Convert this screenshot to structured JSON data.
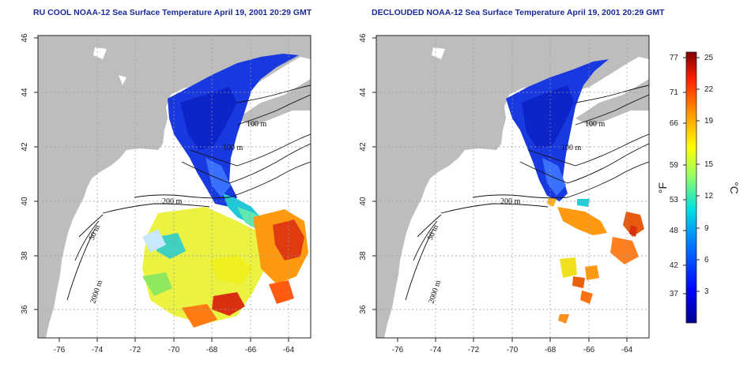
{
  "panels": [
    {
      "title": "RU COOL NOAA-12 Sea Surface Temperature April 19, 2001 20:29 GMT",
      "x_ticks": [
        "-76",
        "-74",
        "-72",
        "-70",
        "-68",
        "-66",
        "-64"
      ],
      "y_ticks": [
        "46",
        "44",
        "42",
        "40",
        "38",
        "36"
      ],
      "contour_labels": [
        "100 m",
        "100 m",
        "200 m",
        "50 m",
        "2000 m"
      ]
    },
    {
      "title": "DECLOUDED NOAA-12 Sea Surface Temperature April 19, 2001 20:29 GMT",
      "x_ticks": [
        "-76",
        "-74",
        "-72",
        "-70",
        "-68",
        "-66",
        "-64"
      ],
      "y_ticks": [
        "46",
        "44",
        "42",
        "40",
        "38",
        "36"
      ],
      "contour_labels": [
        "100 m",
        "100 m",
        "200 m",
        "50 m",
        "2000 m"
      ]
    }
  ],
  "colorbar": {
    "fahrenheit_ticks": [
      "77",
      "71",
      "66",
      "59",
      "53",
      "48",
      "42",
      "37"
    ],
    "celsius_ticks": [
      "25",
      "22",
      "19",
      "15",
      "12",
      "9",
      "6",
      "3"
    ],
    "fahrenheit_label": "°F",
    "celsius_label": "°C"
  },
  "colors": {
    "land": "#bdbdbd",
    "title": "#1a2a9a",
    "cold": "#1030d8",
    "warm": "#d83a10"
  }
}
